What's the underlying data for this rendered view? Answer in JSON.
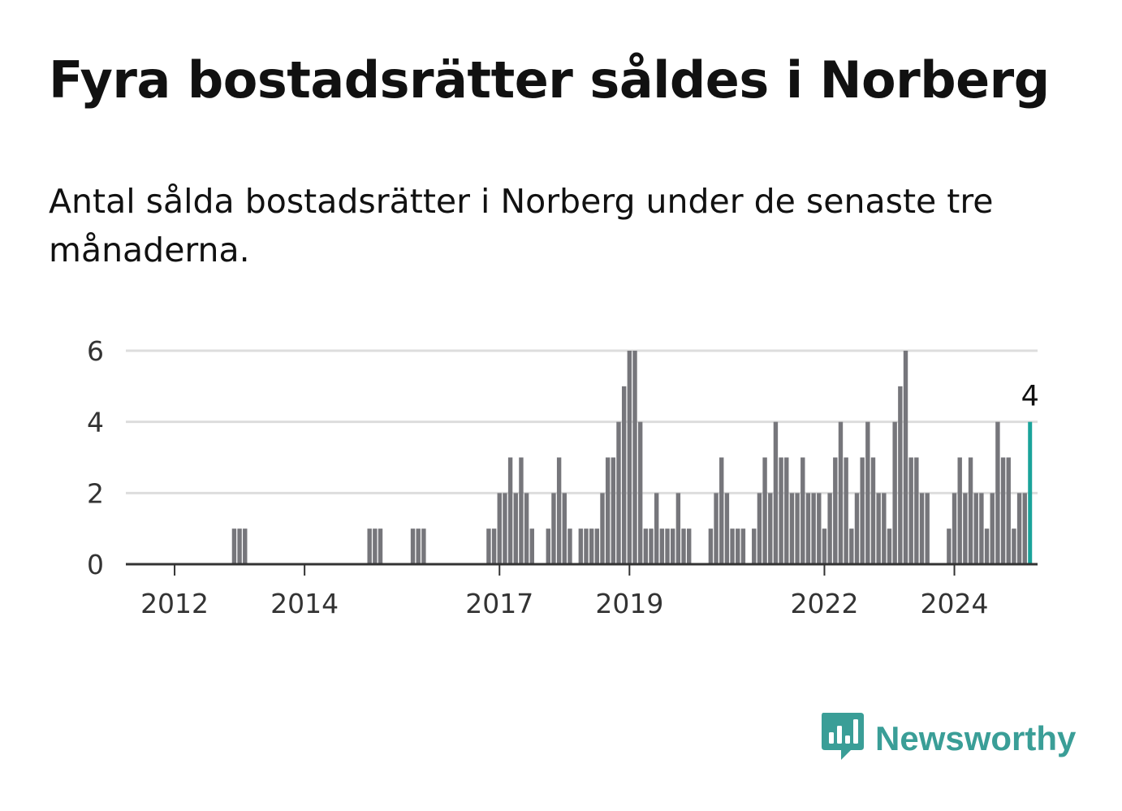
{
  "title": "Fyra bostadsrätter såldes i Norberg",
  "subtitle": "Antal sålda bostadsrätter i Norberg under de senaste tre månaderna.",
  "brand": {
    "name": "Newsworthy",
    "icon": "newsworthy-logo-icon",
    "color": "#3a9e97"
  },
  "colors": {
    "bar": "#76767b",
    "highlight": "#1aa39a",
    "grid": "#dddddd",
    "axis": "#333333"
  },
  "chart_data": {
    "type": "bar",
    "title": "",
    "xlabel": "",
    "ylabel": "",
    "ylim": [
      0,
      6
    ],
    "yticks": [
      0,
      2,
      4,
      6
    ],
    "grid": true,
    "x_start": "2011-05",
    "x_end": "2025-03",
    "xticks": [
      "2012",
      "2014",
      "2017",
      "2019",
      "2022",
      "2024"
    ],
    "series": [
      {
        "values": [
          {
            "x": "2012-12",
            "y": 1
          },
          {
            "x": "2013-01",
            "y": 1
          },
          {
            "x": "2013-02",
            "y": 1
          },
          {
            "x": "2015-01",
            "y": 1
          },
          {
            "x": "2015-02",
            "y": 1
          },
          {
            "x": "2015-03",
            "y": 1
          },
          {
            "x": "2015-09",
            "y": 1
          },
          {
            "x": "2015-10",
            "y": 1
          },
          {
            "x": "2015-11",
            "y": 1
          },
          {
            "x": "2016-11",
            "y": 1
          },
          {
            "x": "2016-12",
            "y": 1
          },
          {
            "x": "2017-01",
            "y": 2
          },
          {
            "x": "2017-02",
            "y": 2
          },
          {
            "x": "2017-03",
            "y": 3
          },
          {
            "x": "2017-04",
            "y": 2
          },
          {
            "x": "2017-05",
            "y": 3
          },
          {
            "x": "2017-06",
            "y": 2
          },
          {
            "x": "2017-07",
            "y": 1
          },
          {
            "x": "2017-10",
            "y": 1
          },
          {
            "x": "2017-11",
            "y": 2
          },
          {
            "x": "2017-12",
            "y": 3
          },
          {
            "x": "2018-01",
            "y": 2
          },
          {
            "x": "2018-02",
            "y": 1
          },
          {
            "x": "2018-04",
            "y": 1
          },
          {
            "x": "2018-05",
            "y": 1
          },
          {
            "x": "2018-06",
            "y": 1
          },
          {
            "x": "2018-07",
            "y": 1
          },
          {
            "x": "2018-08",
            "y": 2
          },
          {
            "x": "2018-09",
            "y": 3
          },
          {
            "x": "2018-10",
            "y": 3
          },
          {
            "x": "2018-11",
            "y": 4
          },
          {
            "x": "2018-12",
            "y": 5
          },
          {
            "x": "2019-01",
            "y": 6
          },
          {
            "x": "2019-02",
            "y": 6
          },
          {
            "x": "2019-03",
            "y": 4
          },
          {
            "x": "2019-04",
            "y": 1
          },
          {
            "x": "2019-05",
            "y": 1
          },
          {
            "x": "2019-06",
            "y": 2
          },
          {
            "x": "2019-07",
            "y": 1
          },
          {
            "x": "2019-08",
            "y": 1
          },
          {
            "x": "2019-09",
            "y": 1
          },
          {
            "x": "2019-10",
            "y": 2
          },
          {
            "x": "2019-11",
            "y": 1
          },
          {
            "x": "2019-12",
            "y": 1
          },
          {
            "x": "2020-04",
            "y": 1
          },
          {
            "x": "2020-05",
            "y": 2
          },
          {
            "x": "2020-06",
            "y": 3
          },
          {
            "x": "2020-07",
            "y": 2
          },
          {
            "x": "2020-08",
            "y": 1
          },
          {
            "x": "2020-09",
            "y": 1
          },
          {
            "x": "2020-10",
            "y": 1
          },
          {
            "x": "2020-12",
            "y": 1
          },
          {
            "x": "2021-01",
            "y": 2
          },
          {
            "x": "2021-02",
            "y": 3
          },
          {
            "x": "2021-03",
            "y": 2
          },
          {
            "x": "2021-04",
            "y": 4
          },
          {
            "x": "2021-05",
            "y": 3
          },
          {
            "x": "2021-06",
            "y": 3
          },
          {
            "x": "2021-07",
            "y": 2
          },
          {
            "x": "2021-08",
            "y": 2
          },
          {
            "x": "2021-09",
            "y": 3
          },
          {
            "x": "2021-10",
            "y": 2
          },
          {
            "x": "2021-11",
            "y": 2
          },
          {
            "x": "2021-12",
            "y": 2
          },
          {
            "x": "2022-01",
            "y": 1
          },
          {
            "x": "2022-02",
            "y": 2
          },
          {
            "x": "2022-03",
            "y": 3
          },
          {
            "x": "2022-04",
            "y": 4
          },
          {
            "x": "2022-05",
            "y": 3
          },
          {
            "x": "2022-06",
            "y": 1
          },
          {
            "x": "2022-07",
            "y": 2
          },
          {
            "x": "2022-08",
            "y": 3
          },
          {
            "x": "2022-09",
            "y": 4
          },
          {
            "x": "2022-10",
            "y": 3
          },
          {
            "x": "2022-11",
            "y": 2
          },
          {
            "x": "2022-12",
            "y": 2
          },
          {
            "x": "2023-01",
            "y": 1
          },
          {
            "x": "2023-02",
            "y": 4
          },
          {
            "x": "2023-03",
            "y": 5
          },
          {
            "x": "2023-04",
            "y": 6
          },
          {
            "x": "2023-05",
            "y": 3
          },
          {
            "x": "2023-06",
            "y": 3
          },
          {
            "x": "2023-07",
            "y": 2
          },
          {
            "x": "2023-08",
            "y": 2
          },
          {
            "x": "2023-12",
            "y": 1
          },
          {
            "x": "2024-01",
            "y": 2
          },
          {
            "x": "2024-02",
            "y": 3
          },
          {
            "x": "2024-03",
            "y": 2
          },
          {
            "x": "2024-04",
            "y": 3
          },
          {
            "x": "2024-05",
            "y": 2
          },
          {
            "x": "2024-06",
            "y": 2
          },
          {
            "x": "2024-07",
            "y": 1
          },
          {
            "x": "2024-08",
            "y": 2
          },
          {
            "x": "2024-09",
            "y": 4
          },
          {
            "x": "2024-10",
            "y": 3
          },
          {
            "x": "2024-11",
            "y": 3
          },
          {
            "x": "2024-12",
            "y": 1
          },
          {
            "x": "2025-01",
            "y": 2
          },
          {
            "x": "2025-02",
            "y": 2
          },
          {
            "x": "2025-03",
            "y": 4
          }
        ]
      }
    ],
    "highlight": {
      "x": "2025-03",
      "y": 4,
      "label": "4"
    }
  }
}
